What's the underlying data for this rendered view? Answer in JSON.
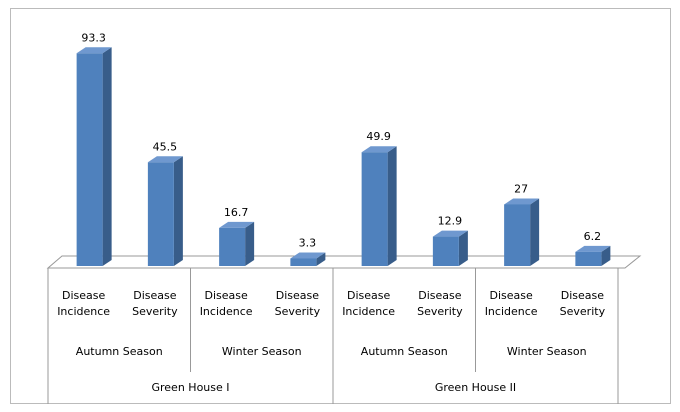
{
  "chart_data": {
    "type": "bar",
    "categories": [
      "Disease Incidence",
      "Disease Severity",
      "Disease Incidence",
      "Disease Severity",
      "Disease Incidence",
      "Disease Severity",
      "Disease Incidence",
      "Disease Severity"
    ],
    "season_groups": [
      "Autumn Season",
      "Winter Season",
      "Autumn Season",
      "Winter Season"
    ],
    "house_groups": [
      "Green House I",
      "Green House II"
    ],
    "values": [
      93.3,
      45.5,
      16.7,
      3.3,
      49.9,
      12.9,
      27,
      6.2
    ],
    "color": "#4f81bd"
  }
}
